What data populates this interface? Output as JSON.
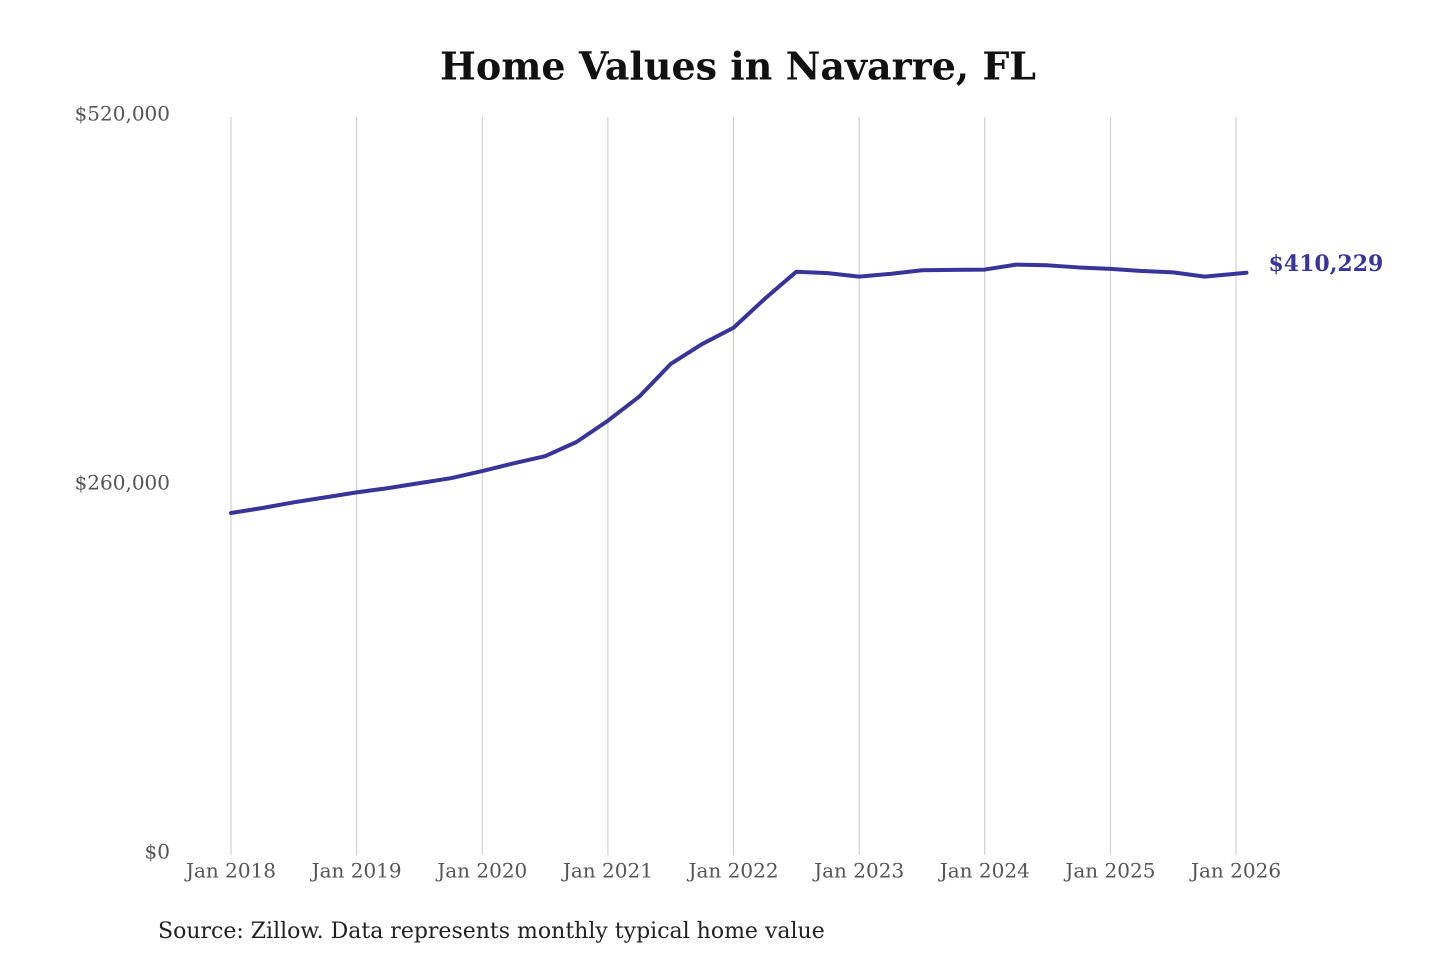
{
  "chart_data": {
    "type": "line",
    "title": "Home Values in Navarre, FL",
    "source": "Source: Zillow. Data represents monthly typical home value",
    "color": "#38359a",
    "x": [
      "2018-01",
      "2018-04",
      "2018-07",
      "2018-10",
      "2019-01",
      "2019-04",
      "2019-07",
      "2019-10",
      "2020-01",
      "2020-04",
      "2020-07",
      "2020-10",
      "2021-01",
      "2021-04",
      "2021-07",
      "2021-10",
      "2022-01",
      "2022-04",
      "2022-07",
      "2022-10",
      "2023-01",
      "2023-04",
      "2023-07",
      "2023-10",
      "2024-01",
      "2024-04",
      "2024-07",
      "2024-10",
      "2025-01",
      "2025-04",
      "2025-07",
      "2025-10",
      "2026-02"
    ],
    "values": [
      241000,
      244500,
      248500,
      252000,
      255500,
      258500,
      262000,
      265500,
      270500,
      276000,
      281000,
      291000,
      306000,
      323000,
      346000,
      360000,
      371500,
      392000,
      411000,
      410000,
      407500,
      409500,
      412000,
      412300,
      412500,
      416000,
      415500,
      414000,
      413000,
      411500,
      410500,
      407500,
      410229
    ],
    "value_labels": [
      null,
      null,
      null,
      null,
      null,
      null,
      null,
      null,
      null,
      null,
      null,
      null,
      null,
      null,
      null,
      null,
      null,
      null,
      null,
      null,
      null,
      null,
      null,
      null,
      null,
      null,
      null,
      null,
      null,
      null,
      null,
      null,
      "$410,229"
    ],
    "xlim": [
      "2018-01",
      "2026-02"
    ],
    "xticks": [
      {
        "value": "2018-01",
        "label": "Jan 2018"
      },
      {
        "value": "2019-01",
        "label": "Jan 2019"
      },
      {
        "value": "2020-01",
        "label": "Jan 2020"
      },
      {
        "value": "2021-01",
        "label": "Jan 2021"
      },
      {
        "value": "2022-01",
        "label": "Jan 2022"
      },
      {
        "value": "2023-01",
        "label": "Jan 2023"
      },
      {
        "value": "2024-01",
        "label": "Jan 2024"
      },
      {
        "value": "2025-01",
        "label": "Jan 2025"
      },
      {
        "value": "2026-01",
        "label": "Jan 2026"
      }
    ],
    "ylim": [
      0,
      520000
    ],
    "yticks": [
      {
        "value": 0,
        "label": "$0"
      },
      {
        "value": 260000,
        "label": "$260,000"
      },
      {
        "value": 520000,
        "label": "$520,000"
      }
    ],
    "grid": "x"
  }
}
